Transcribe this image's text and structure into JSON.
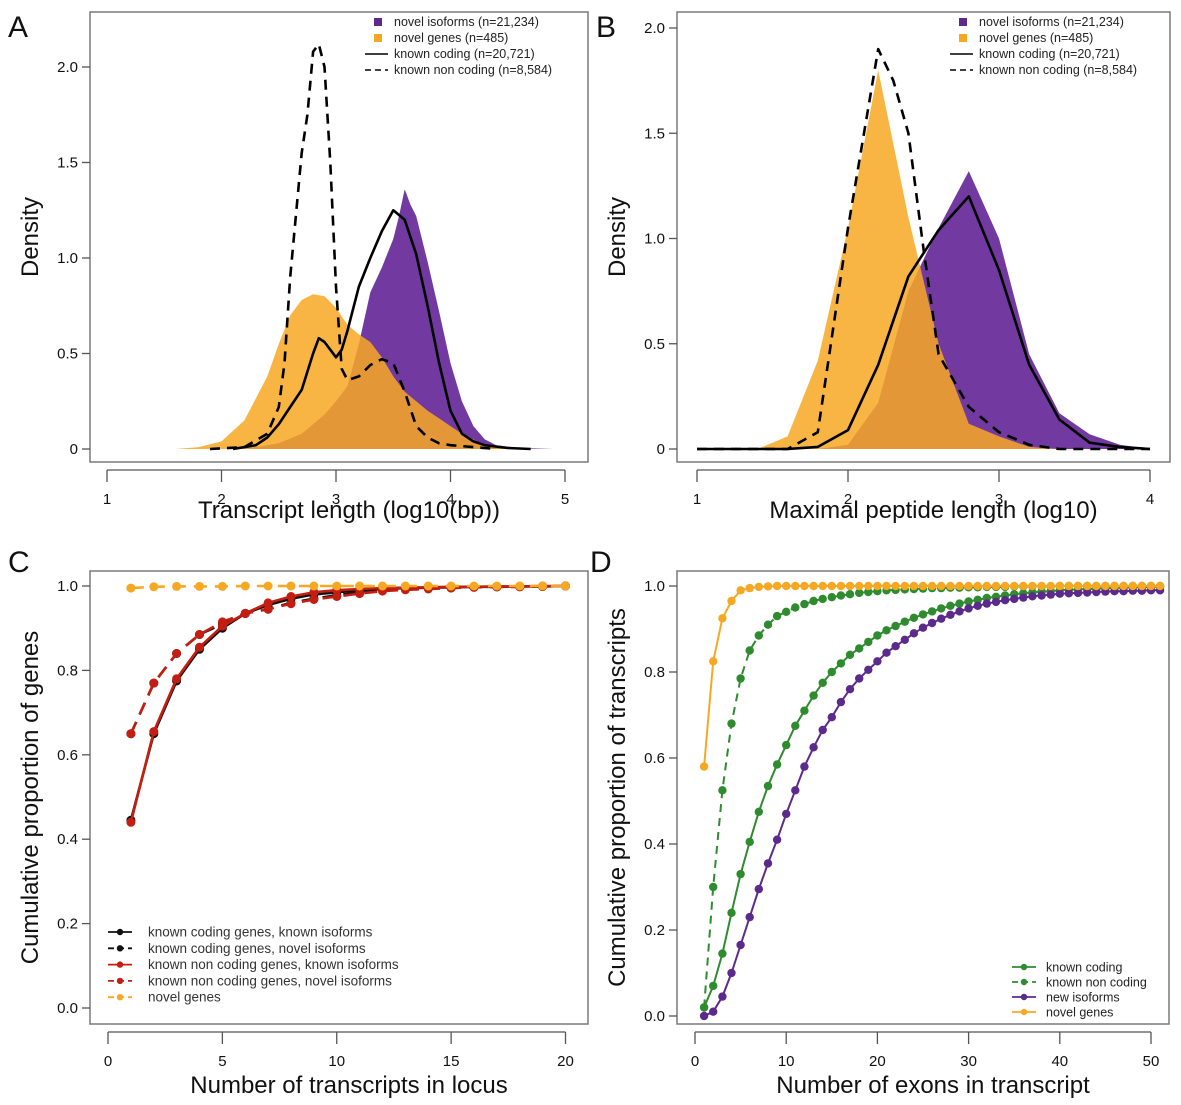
{
  "chart_data": [
    {
      "panel": "A",
      "type": "area",
      "title": "",
      "xlabel": "Transcript length (log10(bp))",
      "ylabel": "Density",
      "xlim": [
        1,
        5
      ],
      "ylim": [
        0,
        2.2
      ],
      "xticks": [
        "1",
        "2",
        "3",
        "4",
        "5"
      ],
      "yticks": [
        "0",
        "0.5",
        "1.0",
        "1.5",
        "2.0"
      ],
      "grid": false,
      "legend_position": "top-right",
      "legend": [
        {
          "label": "novel isoforms (n=21,234)",
          "style": "fill",
          "color": "#5b2a8c"
        },
        {
          "label": "novel genes (n=485)",
          "style": "fill",
          "color": "#f7a823"
        },
        {
          "label": "known coding (n=20,721)",
          "style": "solid",
          "color": "#000000"
        },
        {
          "label": "known non coding (n=8,584)",
          "style": "dashed",
          "color": "#000000"
        }
      ],
      "series": [
        {
          "name": "novel isoforms",
          "style": "fill",
          "color": "#6a2f9c",
          "x": [
            2.0,
            2.3,
            2.5,
            2.7,
            2.9,
            3.0,
            3.1,
            3.2,
            3.3,
            3.4,
            3.5,
            3.55,
            3.6,
            3.65,
            3.7,
            3.75,
            3.8,
            3.9,
            4.0,
            4.1,
            4.2,
            4.3,
            4.4,
            4.6,
            4.9
          ],
          "y": [
            0.0,
            0.01,
            0.03,
            0.08,
            0.18,
            0.25,
            0.33,
            0.55,
            0.82,
            0.95,
            1.1,
            1.22,
            1.36,
            1.28,
            1.22,
            1.1,
            0.98,
            0.72,
            0.45,
            0.25,
            0.12,
            0.05,
            0.02,
            0.005,
            0.0
          ]
        },
        {
          "name": "novel genes",
          "style": "fill",
          "color": "#f7a823",
          "x": [
            1.6,
            1.8,
            2.0,
            2.2,
            2.4,
            2.5,
            2.6,
            2.7,
            2.8,
            2.9,
            3.0,
            3.1,
            3.2,
            3.3,
            3.4,
            3.5,
            3.6,
            3.7,
            3.8,
            3.9,
            4.0,
            4.1,
            4.2,
            4.3,
            4.5,
            4.7
          ],
          "y": [
            0.0,
            0.01,
            0.04,
            0.15,
            0.38,
            0.55,
            0.7,
            0.78,
            0.81,
            0.8,
            0.74,
            0.65,
            0.6,
            0.56,
            0.48,
            0.38,
            0.3,
            0.25,
            0.2,
            0.16,
            0.12,
            0.08,
            0.05,
            0.02,
            0.005,
            0.0
          ]
        },
        {
          "name": "known coding",
          "style": "solid",
          "color": "#000000",
          "x": [
            2.1,
            2.3,
            2.4,
            2.5,
            2.6,
            2.7,
            2.8,
            2.85,
            2.9,
            3.0,
            3.05,
            3.1,
            3.2,
            3.3,
            3.4,
            3.5,
            3.6,
            3.7,
            3.8,
            3.9,
            4.0,
            4.1,
            4.2,
            4.3,
            4.5,
            4.7
          ],
          "y": [
            0.0,
            0.02,
            0.06,
            0.13,
            0.22,
            0.31,
            0.5,
            0.58,
            0.56,
            0.48,
            0.52,
            0.62,
            0.85,
            1.0,
            1.14,
            1.25,
            1.2,
            1.02,
            0.75,
            0.45,
            0.2,
            0.08,
            0.04,
            0.02,
            0.005,
            0.0
          ]
        },
        {
          "name": "known non coding",
          "style": "dashed",
          "color": "#000000",
          "x": [
            1.9,
            2.2,
            2.4,
            2.5,
            2.55,
            2.6,
            2.7,
            2.75,
            2.8,
            2.85,
            2.9,
            2.95,
            3.0,
            3.05,
            3.1,
            3.2,
            3.3,
            3.4,
            3.5,
            3.6,
            3.7,
            3.8,
            3.9,
            4.0,
            4.2,
            4.4
          ],
          "y": [
            0.0,
            0.01,
            0.08,
            0.22,
            0.45,
            0.9,
            1.55,
            1.75,
            2.08,
            2.12,
            2.0,
            1.5,
            0.85,
            0.42,
            0.36,
            0.38,
            0.44,
            0.47,
            0.45,
            0.3,
            0.12,
            0.06,
            0.03,
            0.02,
            0.01,
            0.0
          ]
        }
      ]
    },
    {
      "panel": "B",
      "type": "area",
      "title": "",
      "xlabel": "Maximal peptide length (log10)",
      "ylabel": "Density",
      "xlim": [
        1,
        4
      ],
      "ylim": [
        0,
        2.0
      ],
      "xticks": [
        "1",
        "2",
        "3",
        "4"
      ],
      "yticks": [
        "0",
        "0.5",
        "1.0",
        "1.5",
        "2.0"
      ],
      "grid": false,
      "legend_position": "top-right",
      "legend": [
        {
          "label": "novel isoforms (n=21,234)",
          "style": "fill",
          "color": "#5b2a8c"
        },
        {
          "label": "novel genes (n=485)",
          "style": "fill",
          "color": "#f7a823"
        },
        {
          "label": "known coding (n=20,721)",
          "style": "solid",
          "color": "#000000"
        },
        {
          "label": "known non coding (n=8,584)",
          "style": "dashed",
          "color": "#000000"
        }
      ],
      "series": [
        {
          "name": "novel isoforms",
          "style": "fill",
          "color": "#6a2f9c",
          "x": [
            1.0,
            1.8,
            2.0,
            2.2,
            2.4,
            2.6,
            2.8,
            3.0,
            3.2,
            3.4,
            3.6,
            3.8,
            4.0
          ],
          "y": [
            0.0,
            0.0,
            0.02,
            0.22,
            0.75,
            1.05,
            1.32,
            1.0,
            0.45,
            0.17,
            0.07,
            0.02,
            0.0
          ]
        },
        {
          "name": "novel genes",
          "style": "fill",
          "color": "#f7a823",
          "x": [
            1.0,
            1.4,
            1.6,
            1.8,
            2.0,
            2.2,
            2.4,
            2.6,
            2.8,
            3.0,
            3.2,
            3.4,
            3.6,
            3.8
          ],
          "y": [
            0.0,
            0.0,
            0.06,
            0.42,
            1.05,
            1.8,
            1.1,
            0.5,
            0.12,
            0.06,
            0.01,
            0.0,
            0.0,
            0.0
          ]
        },
        {
          "name": "known coding",
          "style": "solid",
          "color": "#000000",
          "x": [
            1.0,
            1.6,
            1.8,
            2.0,
            2.2,
            2.4,
            2.6,
            2.8,
            3.0,
            3.2,
            3.4,
            3.6,
            3.8,
            4.0
          ],
          "y": [
            0.0,
            0.0,
            0.01,
            0.09,
            0.4,
            0.82,
            1.04,
            1.2,
            0.85,
            0.4,
            0.14,
            0.03,
            0.01,
            0.0
          ]
        },
        {
          "name": "known non coding",
          "style": "dashed",
          "color": "#000000",
          "x": [
            1.0,
            1.6,
            1.8,
            2.0,
            2.2,
            2.3,
            2.4,
            2.5,
            2.6,
            2.8,
            3.0,
            3.2,
            3.4,
            3.6,
            4.0
          ],
          "y": [
            0.0,
            0.0,
            0.08,
            1.05,
            1.9,
            1.75,
            1.5,
            0.95,
            0.45,
            0.2,
            0.08,
            0.02,
            0.0,
            0.0,
            0.0
          ]
        }
      ]
    },
    {
      "panel": "C",
      "type": "line",
      "title": "",
      "xlabel": "Number of transcripts in locus",
      "ylabel": "Cumulative proportion of genes",
      "xlim": [
        0,
        20.7
      ],
      "ylim": [
        0,
        1.0
      ],
      "xticks": [
        "0",
        "5",
        "10",
        "15",
        "20"
      ],
      "yticks": [
        "0.0",
        "0.2",
        "0.4",
        "0.6",
        "0.8",
        "1.0"
      ],
      "grid": false,
      "legend_position": "bottom-left",
      "x": [
        1,
        2,
        3,
        4,
        5,
        6,
        7,
        8,
        9,
        10,
        11,
        12,
        13,
        14,
        15,
        16,
        17,
        18,
        19,
        20
      ],
      "series": [
        {
          "name": "known coding genes, known isoforms",
          "style": "solid",
          "color": "#111111",
          "values": [
            0.445,
            0.65,
            0.775,
            0.85,
            0.9,
            0.935,
            0.955,
            0.97,
            0.98,
            0.985,
            0.99,
            0.993,
            0.995,
            0.996,
            0.997,
            0.998,
            0.998,
            0.999,
            0.999,
            1.0
          ]
        },
        {
          "name": "known coding genes, novel isoforms",
          "style": "dashed",
          "color": "#111111",
          "values": [
            0.65,
            0.77,
            0.84,
            0.885,
            0.91,
            0.935,
            0.945,
            0.96,
            0.97,
            0.978,
            0.985,
            0.99,
            0.993,
            0.995,
            0.996,
            0.997,
            0.998,
            0.998,
            0.999,
            1.0
          ]
        },
        {
          "name": "known non coding genes, known isoforms",
          "style": "solid",
          "color": "#c41e12",
          "values": [
            0.44,
            0.655,
            0.78,
            0.855,
            0.905,
            0.935,
            0.96,
            0.975,
            0.985,
            0.99,
            0.993,
            0.995,
            0.996,
            0.997,
            0.998,
            0.998,
            0.999,
            0.999,
            1.0,
            1.0
          ]
        },
        {
          "name": "known non coding genes, novel isoforms",
          "style": "dashed",
          "color": "#c41e12",
          "values": [
            0.65,
            0.77,
            0.84,
            0.885,
            0.915,
            0.935,
            0.945,
            0.958,
            0.968,
            0.975,
            0.982,
            0.988,
            0.991,
            0.993,
            0.995,
            0.997,
            0.998,
            0.998,
            0.999,
            1.0
          ]
        },
        {
          "name": "novel genes",
          "style": "dashed",
          "color": "#f7a823",
          "values": [
            0.995,
            0.998,
            0.999,
            0.999,
            0.999,
            1.0,
            1.0,
            1.0,
            1.0,
            1.0,
            1.0,
            1.0,
            1.0,
            1.0,
            1.0,
            1.0,
            1.0,
            1.0,
            1.0,
            1.0
          ]
        }
      ]
    },
    {
      "panel": "D",
      "type": "line",
      "title": "",
      "xlabel": "Number of exons in transcript",
      "ylabel": "Cumulative proportion of transcripts",
      "xlim": [
        0,
        51.5
      ],
      "ylim": [
        0,
        1.0
      ],
      "xticks": [
        "0",
        "10",
        "20",
        "30",
        "40",
        "50"
      ],
      "yticks": [
        "0.0",
        "0.2",
        "0.4",
        "0.6",
        "0.8",
        "1.0"
      ],
      "grid": false,
      "legend_position": "bottom-right",
      "x_range": [
        1,
        51
      ],
      "series": [
        {
          "name": "known coding",
          "style": "solid",
          "color": "#2e8b2e",
          "values": [
            0.02,
            0.07,
            0.145,
            0.24,
            0.33,
            0.405,
            0.475,
            0.535,
            0.585,
            0.63,
            0.675,
            0.71,
            0.745,
            0.775,
            0.8,
            0.82,
            0.84,
            0.855,
            0.87,
            0.885,
            0.897,
            0.907,
            0.917,
            0.926,
            0.934,
            0.941,
            0.948,
            0.954,
            0.959,
            0.964,
            0.968,
            0.972,
            0.975,
            0.978,
            0.981,
            0.983,
            0.985,
            0.987,
            0.988,
            0.99,
            0.991,
            0.992,
            0.993,
            0.994,
            0.995,
            0.996,
            0.996,
            0.997,
            0.997,
            0.998,
            0.998
          ]
        },
        {
          "name": "known non coding",
          "style": "dashed",
          "color": "#2e8b2e",
          "values": [
            0.02,
            0.3,
            0.525,
            0.68,
            0.785,
            0.85,
            0.885,
            0.91,
            0.93,
            0.94,
            0.95,
            0.958,
            0.965,
            0.97,
            0.974,
            0.978,
            0.981,
            0.984,
            0.986,
            0.988,
            0.99,
            0.991,
            0.992,
            0.993,
            0.994,
            0.995,
            0.995,
            0.996,
            0.996,
            0.997,
            0.997,
            0.998,
            0.998,
            0.998,
            0.999,
            0.999,
            0.999,
            0.999,
            0.999,
            1.0,
            1.0,
            1.0,
            1.0,
            1.0,
            1.0,
            1.0,
            1.0,
            1.0,
            1.0,
            1.0,
            1.0
          ]
        },
        {
          "name": "new isoforms",
          "style": "solid",
          "color": "#5b2a8c",
          "values": [
            0.0,
            0.01,
            0.045,
            0.1,
            0.165,
            0.23,
            0.295,
            0.355,
            0.41,
            0.47,
            0.525,
            0.58,
            0.625,
            0.665,
            0.695,
            0.73,
            0.76,
            0.785,
            0.805,
            0.825,
            0.845,
            0.86,
            0.875,
            0.89,
            0.903,
            0.914,
            0.924,
            0.933,
            0.941,
            0.948,
            0.954,
            0.959,
            0.963,
            0.967,
            0.97,
            0.973,
            0.976,
            0.978,
            0.98,
            0.982,
            0.983,
            0.984,
            0.985,
            0.986,
            0.987,
            0.988,
            0.988,
            0.989,
            0.989,
            0.99,
            0.99
          ]
        },
        {
          "name": "novel genes",
          "style": "solid",
          "color": "#f7a823",
          "values": [
            0.58,
            0.825,
            0.925,
            0.965,
            0.99,
            0.995,
            0.998,
            0.999,
            1.0,
            1.0,
            1.0,
            1.0,
            1.0,
            1.0,
            1.0,
            1.0,
            1.0,
            1.0,
            1.0,
            1.0,
            1.0,
            1.0,
            1.0,
            1.0,
            1.0,
            1.0,
            1.0,
            1.0,
            1.0,
            1.0,
            1.0,
            1.0,
            1.0,
            1.0,
            1.0,
            1.0,
            1.0,
            1.0,
            1.0,
            1.0,
            1.0,
            1.0,
            1.0,
            1.0,
            1.0,
            1.0,
            1.0,
            1.0,
            1.0,
            1.0,
            1.0
          ]
        }
      ]
    }
  ]
}
